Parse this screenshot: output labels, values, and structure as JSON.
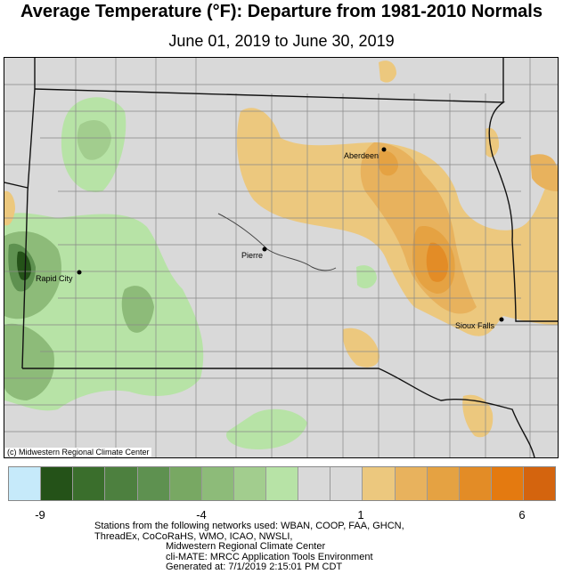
{
  "title": "Average Temperature (°F): Departure from 1981-2010 Normals",
  "subtitle": "June 01, 2019 to June 30, 2019",
  "map": {
    "region": "South Dakota",
    "credit": "(c) Midwestern Regional Climate Center",
    "cities": [
      {
        "name": "Aberdeen"
      },
      {
        "name": "Pierre"
      },
      {
        "name": "Rapid City"
      },
      {
        "name": "Sioux Falls"
      }
    ]
  },
  "legend": {
    "colors": [
      "#c6eafa",
      "#245218",
      "#3a6e2c",
      "#4d803f",
      "#5e9150",
      "#78a863",
      "#8dbb79",
      "#a2cd8e",
      "#b7e3a6",
      "#d9d9d9",
      "#d9d9d9",
      "#ecc87e",
      "#e8b25d",
      "#e5a242",
      "#e38c26",
      "#e47a10",
      "#d4640e"
    ],
    "ticks": [
      "-9",
      "-4",
      "1",
      "6"
    ]
  },
  "footer": {
    "line1": "Stations from the following networks used: WBAN, COOP, FAA, GHCN,",
    "line2": "ThreadEx, CoCoRaHS, WMO, ICAO, NWSLI,",
    "line3": "Midwestern Regional Climate Center",
    "line4": "cli-MATE: MRCC Application Tools Environment",
    "line5": "Generated at: 7/1/2019 2:15:01 PM CDT"
  }
}
